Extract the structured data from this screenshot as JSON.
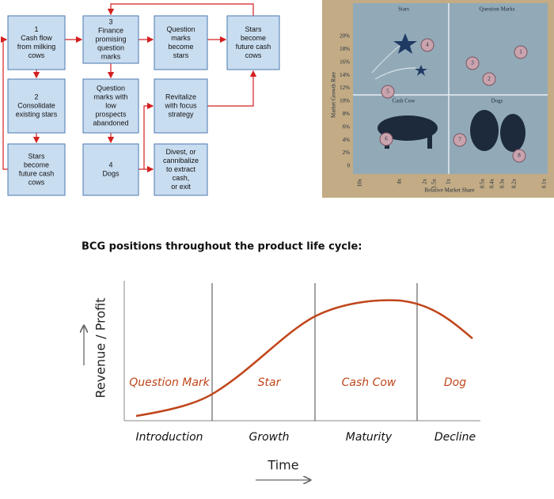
{
  "flowchart": {
    "boxes": [
      {
        "lines": [
          "1",
          "Cash flow",
          "from milking",
          "cows"
        ]
      },
      {
        "lines": [
          "3",
          "Finance",
          "promising",
          "question",
          "marks"
        ]
      },
      {
        "lines": [
          "Question",
          "marks",
          "become",
          "stars"
        ]
      },
      {
        "lines": [
          "Stars",
          "become",
          "future cash",
          "cows"
        ]
      },
      {
        "lines": [
          "2",
          "Consolidate",
          "existing stars"
        ]
      },
      {
        "lines": [
          "Question",
          "marks with",
          "low",
          "prospects",
          "abandoned"
        ]
      },
      {
        "lines": [
          "Revitalize",
          "with focus",
          "strategy"
        ]
      },
      {
        "lines": [
          "Stars",
          "become",
          "future cash",
          "cows"
        ]
      },
      {
        "lines": [
          "4",
          "Dogs"
        ]
      },
      {
        "lines": [
          "Divest, or",
          "cannibalize",
          "to extract",
          "cash,",
          "or exit"
        ]
      }
    ]
  },
  "matrix": {
    "quadrants": [
      "Stars",
      "Question Marks",
      "Cash Cow",
      "Dogs"
    ],
    "y_axis_label": "Market Growth Rate",
    "yticks": [
      "20%",
      "18%",
      "16%",
      "14%",
      "12%",
      "10%",
      "8%",
      "6%",
      "4%",
      "2%",
      "0"
    ],
    "xticks": [
      "10x",
      "4x",
      "2x",
      "1.5x",
      "1x",
      "0.5x",
      "0.4x",
      "0.3x",
      "0.2x",
      "0.1x"
    ],
    "x_axis_label": "Relative Market Share",
    "markers": [
      "1",
      "2",
      "3",
      "4",
      "5",
      "6",
      "7",
      "8"
    ]
  },
  "lifecycle": {
    "title": "BCG positions throughout the product life cycle:",
    "y_axis_label": "Revenue / Profit",
    "x_axis_label": "Time",
    "stages": [
      "Question Mark",
      "Star",
      "Cash Cow",
      "Dog"
    ],
    "phases": [
      "Introduction",
      "Growth",
      "Maturity",
      "Decline"
    ]
  }
}
